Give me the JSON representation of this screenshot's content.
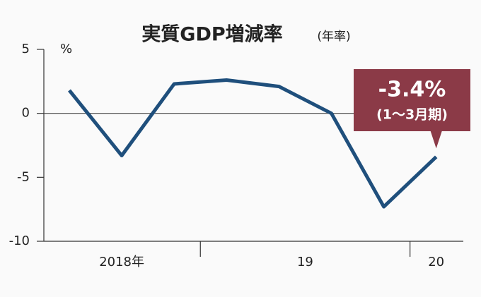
{
  "chart_data": {
    "type": "line",
    "title": "実質GDP増減率",
    "subtitle": "(年率)",
    "y_unit": "%",
    "categories": [
      "2018年",
      null,
      null,
      "19",
      null,
      null,
      null,
      "20"
    ],
    "series": [
      {
        "color": "#1f4f7c",
        "values": [
          1.8,
          -3.3,
          2.3,
          2.6,
          2.1,
          0.0,
          -7.3,
          -3.4
        ],
        "value_labels": [
          null,
          null,
          null,
          null,
          null,
          null,
          null,
          "-3.4%"
        ]
      }
    ],
    "annotation": "(1～3月期)",
    "annotation_color": "#8b3a47",
    "ylim": [
      -10,
      5
    ],
    "yticks": [
      5,
      0,
      -5,
      -10
    ],
    "zero_line": true
  }
}
